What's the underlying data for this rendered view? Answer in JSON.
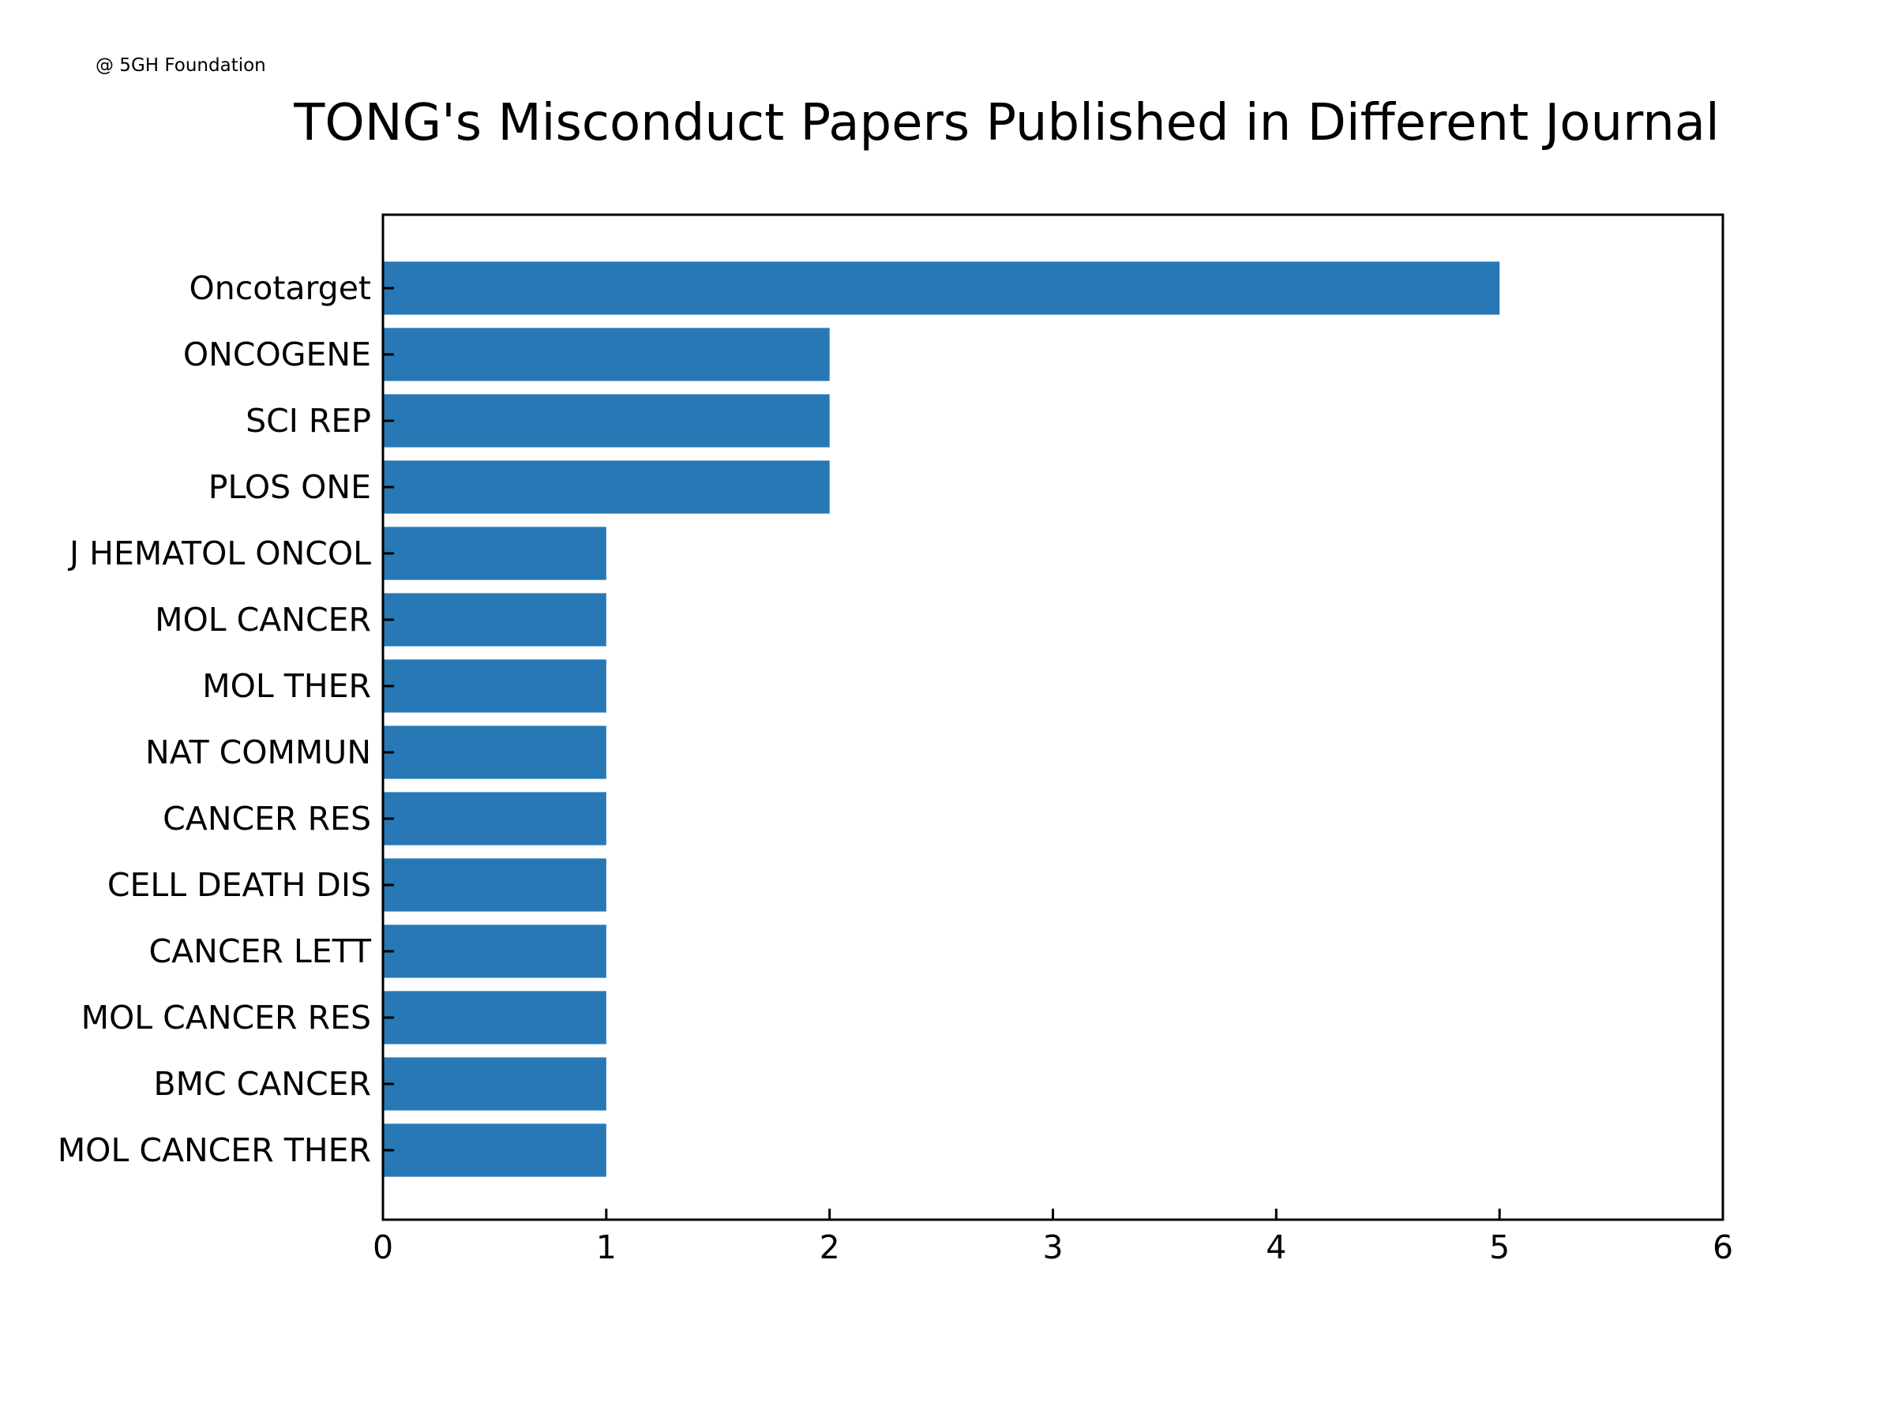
{
  "watermark": "@ 5GH Foundation",
  "chart_data": {
    "type": "bar",
    "orientation": "horizontal",
    "title": "TONG's Misconduct Papers Published in Different Journal",
    "xlabel": "",
    "ylabel": "",
    "categories": [
      "Oncotarget",
      "ONCOGENE",
      "SCI REP",
      "PLOS ONE",
      "J HEMATOL ONCOL",
      "MOL CANCER",
      "MOL THER",
      "NAT COMMUN",
      "CANCER RES",
      "CELL DEATH DIS",
      "CANCER LETT",
      "MOL CANCER RES",
      "BMC CANCER",
      "MOL CANCER THER"
    ],
    "values": [
      5,
      2,
      2,
      2,
      1,
      1,
      1,
      1,
      1,
      1,
      1,
      1,
      1,
      1
    ],
    "xlim": [
      0,
      6
    ],
    "xticks": [
      0,
      1,
      2,
      3,
      4,
      5,
      6
    ],
    "grid": false,
    "legend": "none",
    "bar_color": "#2878b5"
  }
}
